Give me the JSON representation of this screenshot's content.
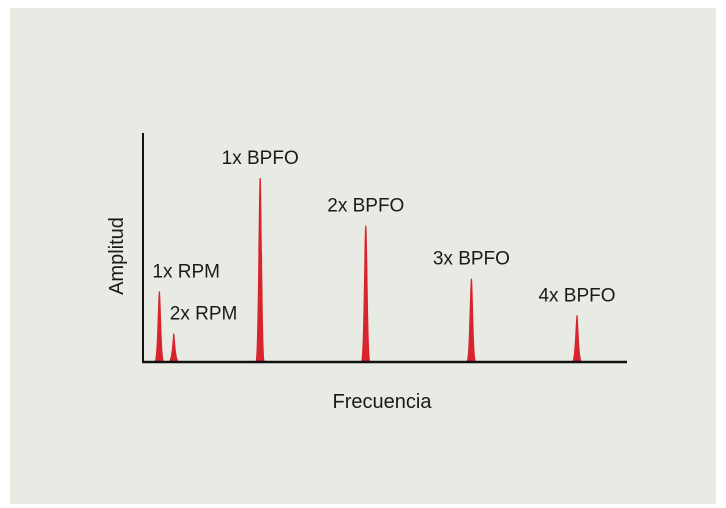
{
  "colors": {
    "background": "#e8eae4",
    "axis": "#111111",
    "peak": "#d8242c"
  },
  "chart_data": {
    "type": "line",
    "title": "",
    "xlabel": "Frecuencia",
    "ylabel": "Amplitud",
    "xlim": [
      0,
      100
    ],
    "ylim": [
      0,
      100
    ],
    "grid": false,
    "series": [
      {
        "x": [
          3,
          6,
          24,
          46,
          68,
          90
        ],
        "values": [
          38,
          15,
          100,
          74,
          45,
          25
        ],
        "labels": [
          "1x RPM",
          "2x RPM",
          "1x BPFO",
          "2x BPFO",
          "3x BPFO",
          "4x BPFO"
        ]
      }
    ]
  }
}
